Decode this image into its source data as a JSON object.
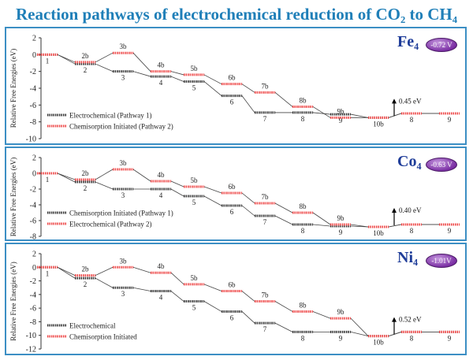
{
  "title": "Reaction pathways  of electrochemical reduction of CO₂ to CH₄",
  "ylabel": "Relative Free Energies (eV)",
  "colors": {
    "pathway_black": "#333333",
    "pathway_red": "#ee4444",
    "frame": "#3c8fc4",
    "title": "#1f7fb8",
    "badge": "#7a2ea3"
  },
  "chart_data": [
    {
      "type": "line",
      "metal": "Fe₄",
      "onset_potential": "-0.72 V",
      "ylim": [
        -10,
        2
      ],
      "yticks": [
        "2",
        "0",
        "-2",
        "-4",
        "-6",
        "-8",
        "-10"
      ],
      "ytick_values": [
        2,
        0,
        -2,
        -4,
        -6,
        -8,
        -10
      ],
      "legend": [
        "Electrochemical (Pathway 1)",
        "Chemisorption Initiated (Pathway 2)"
      ],
      "annotation": "0.45 eV",
      "series": [
        {
          "name": "Electrochemical (Pathway 1)",
          "color": "black",
          "steps": [
            {
              "label": "1",
              "value": 0.0
            },
            {
              "label": "2",
              "value": -1.1
            },
            {
              "label": "3",
              "value": -2.0
            },
            {
              "label": "4",
              "value": -2.6
            },
            {
              "label": "5",
              "value": -3.2
            },
            {
              "label": "6",
              "value": -4.9
            },
            {
              "label": "7",
              "value": -6.9
            },
            {
              "label": "8",
              "value": -6.9
            },
            {
              "label": "9",
              "value": -7.1
            },
            {
              "label": "10b",
              "value": -7.5
            },
            {
              "label": "8",
              "value": -7.0
            },
            {
              "label": "9",
              "value": -7.0
            }
          ]
        },
        {
          "name": "Chemisorption Initiated (Pathway 2)",
          "color": "red",
          "steps": [
            {
              "label": "1",
              "value": 0.0
            },
            {
              "label": "2b",
              "value": -0.9
            },
            {
              "label": "3b",
              "value": 0.2
            },
            {
              "label": "4b",
              "value": -2.0
            },
            {
              "label": "5b",
              "value": -2.4
            },
            {
              "label": "6b",
              "value": -3.5
            },
            {
              "label": "7b",
              "value": -4.5
            },
            {
              "label": "8b",
              "value": -6.2
            },
            {
              "label": "9b",
              "value": -7.5
            },
            {
              "label": "10b",
              "value": -7.5
            },
            {
              "label": "8",
              "value": -7.0
            },
            {
              "label": "9",
              "value": -7.0
            }
          ]
        }
      ]
    },
    {
      "type": "line",
      "metal": "Co₄",
      "onset_potential": "-0.63 V",
      "ylim": [
        -8,
        2
      ],
      "yticks": [
        "2",
        "0",
        "-2",
        "-4",
        "-6",
        "-8"
      ],
      "ytick_values": [
        2,
        0,
        -2,
        -4,
        -6,
        -8
      ],
      "legend": [
        "Chemisorption Initiated (Pathway 1)",
        "Electrochemical (Pathway 2)"
      ],
      "annotation": "0.40 eV",
      "series": [
        {
          "name": "Chemisorption Initiated (Pathway 1)",
          "color": "black",
          "steps": [
            {
              "label": "1",
              "value": 0.0
            },
            {
              "label": "2",
              "value": -1.1
            },
            {
              "label": "3",
              "value": -2.0
            },
            {
              "label": "4",
              "value": -2.0
            },
            {
              "label": "5",
              "value": -2.9
            },
            {
              "label": "6",
              "value": -4.1
            },
            {
              "label": "7",
              "value": -5.4
            },
            {
              "label": "8",
              "value": -6.5
            },
            {
              "label": "9",
              "value": -6.7
            },
            {
              "label": "10b",
              "value": -6.8
            },
            {
              "label": "8",
              "value": -6.5
            },
            {
              "label": "9",
              "value": -6.5
            }
          ]
        },
        {
          "name": "Electrochemical (Pathway 2)",
          "color": "red",
          "steps": [
            {
              "label": "1",
              "value": 0.0
            },
            {
              "label": "2b",
              "value": -0.8
            },
            {
              "label": "3b",
              "value": 0.5
            },
            {
              "label": "4b",
              "value": -1.0
            },
            {
              "label": "5b",
              "value": -1.7
            },
            {
              "label": "6b",
              "value": -2.5
            },
            {
              "label": "7b",
              "value": -3.8
            },
            {
              "label": "8b",
              "value": -5.0
            },
            {
              "label": "9b",
              "value": -6.5
            },
            {
              "label": "10b",
              "value": -6.8
            },
            {
              "label": "8",
              "value": -6.5
            },
            {
              "label": "9",
              "value": -6.5
            }
          ]
        }
      ]
    },
    {
      "type": "line",
      "metal": "Ni₄",
      "onset_potential": "-1.01V",
      "ylim": [
        -12,
        2
      ],
      "yticks": [
        "2",
        "0",
        "-2",
        "-4",
        "-6",
        "-8",
        "-10",
        "-12"
      ],
      "ytick_values": [
        2,
        0,
        -2,
        -4,
        -6,
        -8,
        -10,
        -12
      ],
      "legend": [
        "Electrochemical",
        "Chemisorption Initiated"
      ],
      "annotation": "0.52 eV",
      "series": [
        {
          "name": "Electrochemical",
          "color": "black",
          "steps": [
            {
              "label": "1",
              "value": 0.0
            },
            {
              "label": "2",
              "value": -1.6
            },
            {
              "label": "3",
              "value": -3.0
            },
            {
              "label": "4",
              "value": -3.5
            },
            {
              "label": "5",
              "value": -5.0
            },
            {
              "label": "6",
              "value": -6.5
            },
            {
              "label": "7",
              "value": -8.2
            },
            {
              "label": "8",
              "value": -9.5
            },
            {
              "label": "9",
              "value": -9.5
            },
            {
              "label": "10b",
              "value": -10.1
            },
            {
              "label": "8",
              "value": -9.5
            },
            {
              "label": "9",
              "value": -9.5
            }
          ]
        },
        {
          "name": "Chemisorption Initiated",
          "color": "red",
          "steps": [
            {
              "label": "1",
              "value": 0.0
            },
            {
              "label": "2b",
              "value": -1.2
            },
            {
              "label": "3b",
              "value": 0.0
            },
            {
              "label": "4b",
              "value": -0.8
            },
            {
              "label": "5b",
              "value": -2.5
            },
            {
              "label": "6b",
              "value": -3.5
            },
            {
              "label": "7b",
              "value": -5.0
            },
            {
              "label": "8b",
              "value": -6.5
            },
            {
              "label": "9b",
              "value": -7.5
            },
            {
              "label": "10b",
              "value": -10.1
            },
            {
              "label": "8",
              "value": -9.5
            },
            {
              "label": "9",
              "value": -9.5
            }
          ]
        }
      ]
    }
  ]
}
